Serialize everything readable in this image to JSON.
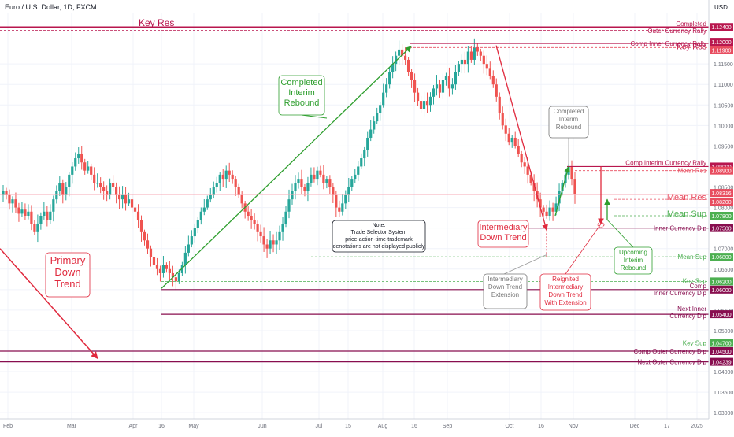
{
  "header": {
    "title": "Euro / U.S. Dollar, 1D, FXCM",
    "currency": "USD"
  },
  "colors": {
    "up": "#26a69a",
    "down": "#ef5350",
    "resistance": "#b8164e",
    "mean_res": "#e84c5f",
    "support_green": "#4caf50",
    "dip": "#880e4f",
    "annotation_green": "#2e9e2e",
    "annotation_red": "#e0293d",
    "grid": "#f0f3fa",
    "axis_text": "#131722"
  },
  "chart_data": {
    "type": "candlestick",
    "instrument": "Euro / U.S. Dollar",
    "interval": "1D",
    "source": "FXCM",
    "ylim": [
      1.0285,
      1.1275
    ],
    "y_ticks": [
      1.115,
      1.11,
      1.105,
      1.1,
      1.095,
      1.085,
      1.08,
      1.075,
      1.07,
      1.065,
      1.06,
      1.055,
      1.05,
      1.045,
      1.04,
      1.035,
      1.03
    ],
    "x_ticks": [
      "Feb",
      "Mar",
      "Apr",
      "16",
      "May",
      "Jun",
      "Jul",
      "15",
      "Aug",
      "16",
      "Sep",
      "Oct",
      "16",
      "Nov",
      "Dec",
      "17",
      "2025"
    ],
    "price_path": [
      [
        1.084,
        1.083,
        1.081,
        1.082,
        1.08,
        1.0785,
        1.0795,
        1.078
      ],
      [
        1.079,
        1.076,
        1.074,
        1.076,
        1.078,
        1.079,
        1.077,
        1.079
      ],
      [
        1.082,
        1.084,
        1.086,
        1.083,
        1.085,
        1.088,
        1.09,
        1.092
      ],
      [
        1.093,
        1.091,
        1.089,
        1.09,
        1.088,
        1.086,
        1.086,
        1.085
      ],
      [
        1.084,
        1.083,
        1.086,
        1.085,
        1.083,
        1.082,
        1.083,
        1.081
      ],
      [
        1.082,
        1.08,
        1.079,
        1.077,
        1.074,
        1.072,
        1.07,
        1.068
      ],
      [
        1.066,
        1.065,
        1.064,
        1.066,
        1.065,
        1.064,
        1.063,
        1.062
      ],
      [
        1.064,
        1.066,
        1.069,
        1.071,
        1.073,
        1.075,
        1.077,
        1.079
      ],
      [
        1.08,
        1.082,
        1.083,
        1.085,
        1.086,
        1.088,
        1.087,
        1.089
      ],
      [
        1.088,
        1.087,
        1.085,
        1.083,
        1.081,
        1.079,
        1.078,
        1.077
      ],
      [
        1.076,
        1.074,
        1.073,
        1.071,
        1.07,
        1.072,
        1.071,
        1.072
      ],
      [
        1.074,
        1.076,
        1.079,
        1.082,
        1.084,
        1.086,
        1.087,
        1.085
      ],
      [
        1.084,
        1.086,
        1.088,
        1.087,
        1.089,
        1.088,
        1.086,
        1.087
      ],
      [
        1.085,
        1.083,
        1.08,
        1.079,
        1.081,
        1.083,
        1.085,
        1.087
      ],
      [
        1.088,
        1.09,
        1.092,
        1.094,
        1.097,
        1.099,
        1.101,
        1.103
      ],
      [
        1.105,
        1.108,
        1.11,
        1.113,
        1.115,
        1.117,
        1.1185,
        1.117
      ],
      [
        1.116,
        1.113,
        1.111,
        1.108,
        1.106,
        1.104,
        1.106,
        1.105
      ],
      [
        1.107,
        1.109,
        1.11,
        1.108,
        1.111,
        1.112,
        1.109,
        1.11
      ],
      [
        1.113,
        1.115,
        1.116,
        1.115,
        1.118,
        1.116,
        1.119,
        1.118
      ],
      [
        1.117,
        1.115,
        1.114,
        1.112,
        1.11,
        1.107,
        1.103,
        1.1
      ],
      [
        1.098,
        1.096,
        1.097,
        1.095,
        1.093,
        1.091,
        1.09,
        1.088
      ],
      [
        1.086,
        1.084,
        1.082,
        1.08,
        1.079,
        1.078,
        1.08,
        1.079
      ],
      [
        1.081,
        1.084,
        1.086,
        1.088,
        1.09,
        1.087,
        1.0832
      ]
    ],
    "levels": [
      {
        "label": "Completed Outer Currency Rally",
        "value": 1.124,
        "color": "resistance"
      },
      {
        "label": "Key Res",
        "value": 1.12,
        "color": "resistance"
      },
      {
        "label": "Comp Inner Currency Rally",
        "value": 1.119,
        "color": "resistance"
      },
      {
        "label": "Comp Interim Currency Rally",
        "value": 1.09,
        "color": "resistance"
      },
      {
        "label": "Mean Res",
        "value": 1.089,
        "color": "mean_res"
      },
      {
        "label": "Mean Res",
        "value": 1.082,
        "color": "mean_res"
      },
      {
        "label": "Mean Sup",
        "value": 1.078,
        "color": "support_green"
      },
      {
        "label": "Inner Currency Dip",
        "value": 1.075,
        "color": "dip"
      },
      {
        "label": "Mean Sup",
        "value": 1.068,
        "color": "support_green"
      },
      {
        "label": "Key Sup",
        "value": 1.062,
        "color": "support_green"
      },
      {
        "label": "Comp Inner Currency Dip",
        "value": 1.06,
        "color": "dip"
      },
      {
        "label": "Next Inner Currency Dip",
        "value": 1.054,
        "color": "dip"
      },
      {
        "label": "Key Sup",
        "value": 1.047,
        "color": "support_green"
      },
      {
        "label": "Comp Outer Currency Dip",
        "value": 1.045,
        "color": "dip"
      },
      {
        "label": "Next Outer Currency Dip",
        "value": 1.04239,
        "color": "dip"
      }
    ],
    "price_badges": [
      {
        "text": "1.12400",
        "value": 1.124,
        "color": "resistance"
      },
      {
        "text": "1.12000",
        "value": 1.12,
        "color": "resistance"
      },
      {
        "text": "1.11900",
        "value": 1.119,
        "color": "mean_res"
      },
      {
        "text": "1.09000",
        "value": 1.09,
        "color": "resistance"
      },
      {
        "text": "1.08900",
        "value": 1.089,
        "color": "mean_res"
      },
      {
        "text": "1.08316",
        "value": 1.08316,
        "color": "mean_res"
      },
      {
        "text": "1.08200",
        "value": 1.082,
        "color": "mean_res"
      },
      {
        "text": "1.07800",
        "value": 1.078,
        "color": "support_green"
      },
      {
        "text": "1.07500",
        "value": 1.075,
        "color": "dip"
      },
      {
        "text": "1.06800",
        "value": 1.068,
        "color": "support_green"
      },
      {
        "text": "1.06200",
        "value": 1.062,
        "color": "support_green"
      },
      {
        "text": "1.06000",
        "value": 1.06,
        "color": "dip"
      },
      {
        "text": "1.05400",
        "value": 1.054,
        "color": "dip"
      },
      {
        "text": "1.04700",
        "value": 1.047,
        "color": "support_green"
      },
      {
        "text": "1.04500",
        "value": 1.045,
        "color": "dip"
      },
      {
        "text": "1.04239",
        "value": 1.04239,
        "color": "dip"
      }
    ],
    "annotations": [
      {
        "text": "Completed Interim Rebound",
        "color": "annotation_green"
      },
      {
        "text": "Primary Down Trend",
        "color": "annotation_red"
      },
      {
        "text": "Note: Trade Selector System price-action-time-trademark denotations are not displayed publicly",
        "color": "axis_text"
      },
      {
        "text": "Intermediary Down Trend",
        "color": "annotation_red"
      },
      {
        "text": "Completed Interim Rebound",
        "color": "axis_text"
      },
      {
        "text": "Intermediary Down Trend Extension",
        "color": "axis_text"
      },
      {
        "text": "Reignited Intermediary Down Trend With Extension",
        "color": "annotation_red"
      },
      {
        "text": "Upcoming Interim Rebound",
        "color": "annotation_green"
      }
    ]
  }
}
